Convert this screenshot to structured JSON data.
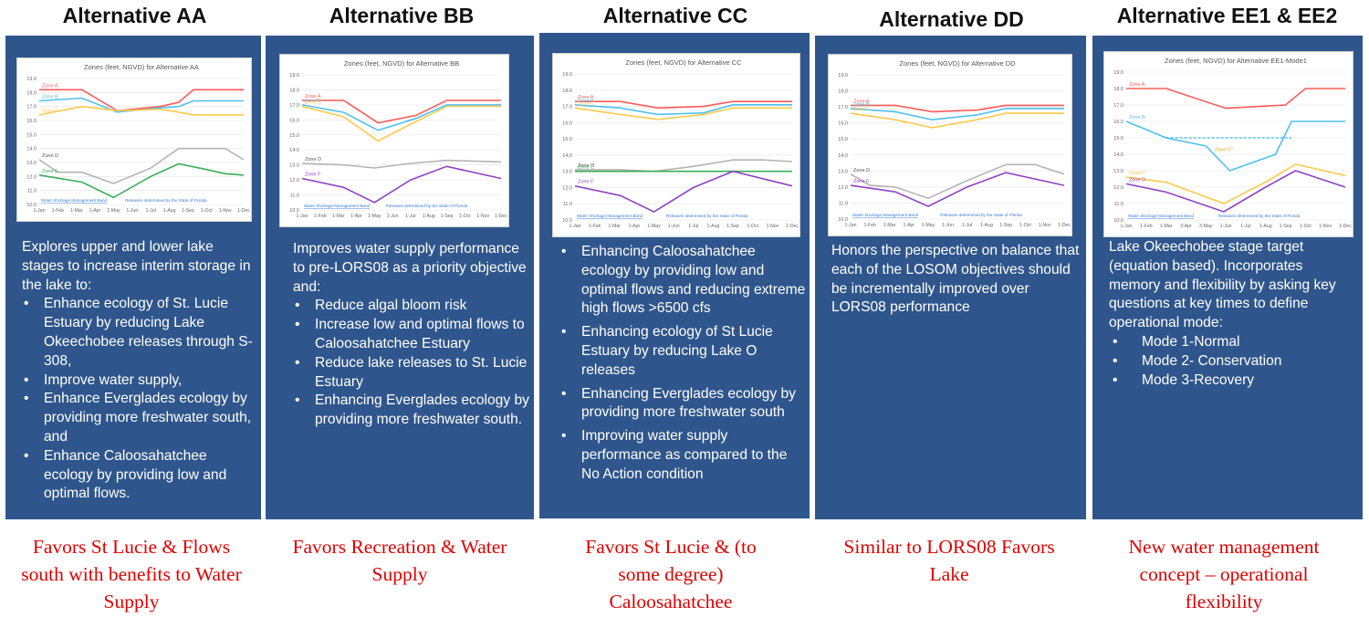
{
  "chart_data": [
    {
      "type": "line",
      "title": "Zones (feet, NGVD) for Alternative AA",
      "categories": [
        "1-Jan",
        "1-Feb",
        "1-Mar",
        "1-Apr",
        "1-May",
        "1-Jun",
        "1-Jul",
        "1-Aug",
        "1-Sep",
        "1-Oct",
        "1-Nov",
        "1-Dec"
      ],
      "ylim": [
        10.0,
        19.0
      ],
      "yticks": [
        "10.0",
        "11.0",
        "12.0",
        "13.0",
        "14.0",
        "15.0",
        "16.0",
        "17.0",
        "18.0",
        "19.0"
      ],
      "series": [
        {
          "name": "Zone A",
          "color": "#ff5a5a",
          "points": [
            [
              0,
              18.2
            ],
            [
              2.3,
              18.2
            ],
            [
              4.2,
              16.7
            ],
            [
              6.5,
              17.0
            ],
            [
              7.5,
              17.3
            ],
            [
              8.3,
              18.2
            ],
            [
              11,
              18.2
            ]
          ]
        },
        {
          "name": "Zone B",
          "color": "#4fc0f0",
          "points": [
            [
              0,
              17.4
            ],
            [
              2.3,
              17.6
            ],
            [
              4.2,
              16.6
            ],
            [
              6.5,
              16.9
            ],
            [
              7.5,
              17.0
            ],
            [
              8.3,
              17.4
            ],
            [
              11,
              17.4
            ]
          ]
        },
        {
          "name": "Zone C",
          "color": "#ffc94a",
          "points": [
            [
              0,
              16.4
            ],
            [
              2.3,
              17.0
            ],
            [
              4.2,
              16.7
            ],
            [
              6.5,
              16.8
            ],
            [
              7.5,
              16.6
            ],
            [
              8.3,
              16.4
            ],
            [
              11,
              16.4
            ]
          ]
        },
        {
          "name": "Zone D",
          "color": "#b4b4b4",
          "points": [
            [
              0,
              13.2
            ],
            [
              1,
              12.3
            ],
            [
              2.3,
              12.3
            ],
            [
              4,
              11.5
            ],
            [
              6,
              12.6
            ],
            [
              7.5,
              14.0
            ],
            [
              9,
              14.0
            ],
            [
              10,
              14.0
            ],
            [
              11,
              13.2
            ]
          ]
        },
        {
          "name": "Zone E",
          "color": "#3aae5a",
          "points": [
            [
              0,
              12.1
            ],
            [
              2.3,
              11.6
            ],
            [
              4,
              10.5
            ],
            [
              6,
              12.0
            ],
            [
              7.5,
              12.9
            ],
            [
              9,
              12.5
            ],
            [
              10,
              12.2
            ],
            [
              11,
              12.1
            ]
          ]
        }
      ],
      "footnote_left": "Water Shortage Management Band",
      "footnote_right": "Releases determined by the State of Florida"
    },
    {
      "type": "line",
      "title": "Zones (feet, NGVD) for Alternative BB",
      "categories": [
        "1-Jan",
        "1-Feb",
        "1-Mar",
        "1-Apr",
        "1-May",
        "1-Jun",
        "1-Jul",
        "1-Aug",
        "1-Sep",
        "1-Oct",
        "1-Nov",
        "1-Dec"
      ],
      "ylim": [
        10.0,
        19.0
      ],
      "yticks": [
        "10.0",
        "11.0",
        "12.0",
        "13.0",
        "14.0",
        "15.0",
        "16.0",
        "17.0",
        "18.0",
        "19.0"
      ],
      "series": [
        {
          "name": "Zone A",
          "color": "#ff5a5a",
          "points": [
            [
              0,
              17.3
            ],
            [
              2.3,
              17.3
            ],
            [
              4.2,
              15.8
            ],
            [
              6.3,
              16.3
            ],
            [
              8,
              17.3
            ],
            [
              11,
              17.3
            ]
          ]
        },
        {
          "name": "Zone B",
          "color": "#4fc0f0",
          "points": [
            [
              0,
              17.0
            ],
            [
              2.3,
              16.5
            ],
            [
              4.2,
              15.3
            ],
            [
              6.3,
              16.1
            ],
            [
              8,
              17.0
            ],
            [
              11,
              17.0
            ]
          ]
        },
        {
          "name": "Zone C",
          "color": "#ffc94a",
          "points": [
            [
              0,
              16.9
            ],
            [
              2.3,
              16.2
            ],
            [
              4.2,
              14.6
            ],
            [
              6.3,
              15.9
            ],
            [
              8,
              16.9
            ],
            [
              11,
              16.9
            ]
          ]
        },
        {
          "name": "Zone D",
          "color": "#b4b4b4",
          "points": [
            [
              0,
              13.1
            ],
            [
              2.3,
              13.0
            ],
            [
              4,
              12.8
            ],
            [
              6,
              13.1
            ],
            [
              8,
              13.3
            ],
            [
              11,
              13.2
            ]
          ]
        },
        {
          "name": "Zone F",
          "color": "#8e44c4",
          "points": [
            [
              0,
              12.1
            ],
            [
              2.3,
              11.5
            ],
            [
              4,
              10.5
            ],
            [
              6,
              12.0
            ],
            [
              8,
              12.9
            ],
            [
              11,
              12.1
            ]
          ]
        }
      ],
      "footnote_left": "Water Shortage Management Band",
      "footnote_right": "Releases determined by the State of Florida"
    },
    {
      "type": "line",
      "title": "Zones (feet, NGVD) for Alternative CC",
      "categories": [
        "1-Jan",
        "1-Feb",
        "1-Mar",
        "1-Apr",
        "1-May",
        "1-Jun",
        "1-Jul",
        "1-Aug",
        "1-Sep",
        "1-Oct",
        "1-Nov",
        "1-Dec"
      ],
      "ylim": [
        10.0,
        19.0
      ],
      "yticks": [
        "10.0",
        "11.0",
        "12.0",
        "13.0",
        "14.0",
        "15.0",
        "16.0",
        "17.0",
        "18.0",
        "19.0"
      ],
      "series": [
        {
          "name": "Zone A",
          "color": "#ff5a5a",
          "points": [
            [
              0,
              17.3
            ],
            [
              2.3,
              17.3
            ],
            [
              4.2,
              16.9
            ],
            [
              6.5,
              17.0
            ],
            [
              8,
              17.3
            ],
            [
              11,
              17.3
            ]
          ]
        },
        {
          "name": "Zone B",
          "color": "#4fc0f0",
          "points": [
            [
              0,
              17.1
            ],
            [
              2.3,
              16.9
            ],
            [
              4.2,
              16.5
            ],
            [
              6.5,
              16.6
            ],
            [
              8,
              17.1
            ],
            [
              11,
              17.1
            ]
          ]
        },
        {
          "name": "Zone C",
          "color": "#ffc94a",
          "points": [
            [
              0,
              16.9
            ],
            [
              2.3,
              16.5
            ],
            [
              4.2,
              16.2
            ],
            [
              6.5,
              16.5
            ],
            [
              8,
              16.9
            ],
            [
              11,
              16.9
            ]
          ]
        },
        {
          "name": "Zone D",
          "color": "#b4b4b4",
          "points": [
            [
              0,
              13.1
            ],
            [
              2.3,
              13.1
            ],
            [
              4,
              13.0
            ],
            [
              6,
              13.3
            ],
            [
              8,
              13.7
            ],
            [
              9.5,
              13.7
            ],
            [
              11,
              13.6
            ]
          ]
        },
        {
          "name": "Zone E",
          "color": "#3aae5a",
          "points": [
            [
              0,
              13.0
            ],
            [
              11,
              13.0
            ]
          ]
        },
        {
          "name": "Zone F",
          "color": "#8e44c4",
          "points": [
            [
              0,
              12.1
            ],
            [
              2.3,
              11.5
            ],
            [
              4,
              10.5
            ],
            [
              6,
              12.0
            ],
            [
              8,
              13.0
            ],
            [
              11,
              12.1
            ]
          ]
        }
      ],
      "footnote_left": "Water Shortage Management Band",
      "footnote_right": "Releases determined by the State of Florida"
    },
    {
      "type": "line",
      "title": "Zones (feet, NGVD) for Alternative DD",
      "categories": [
        "1-Jan",
        "1-Feb",
        "1-Mar",
        "1-Apr",
        "1-May",
        "1-Jun",
        "1-Jul",
        "1-Aug",
        "1-Sep",
        "1-Oct",
        "1-Nov",
        "1-Dec"
      ],
      "ylim": [
        10.0,
        19.0
      ],
      "yticks": [
        "10.0",
        "11.0",
        "12.0",
        "13.0",
        "14.0",
        "15.0",
        "16.0",
        "17.0",
        "18.0",
        "19.0"
      ],
      "series": [
        {
          "name": "Zone A",
          "color": "#ff5a5a",
          "points": [
            [
              0,
              17.1
            ],
            [
              2.3,
              17.1
            ],
            [
              4.2,
              16.7
            ],
            [
              6.5,
              16.8
            ],
            [
              8,
              17.1
            ],
            [
              11,
              17.1
            ]
          ]
        },
        {
          "name": "Zone B",
          "color": "#4fc0f0",
          "points": [
            [
              0,
              16.9
            ],
            [
              2.3,
              16.7
            ],
            [
              4.2,
              16.2
            ],
            [
              6.5,
              16.5
            ],
            [
              8,
              16.9
            ],
            [
              11,
              16.9
            ]
          ]
        },
        {
          "name": "Zone C",
          "color": "#ffc94a",
          "points": [
            [
              0,
              16.6
            ],
            [
              2.3,
              16.2
            ],
            [
              4.2,
              15.7
            ],
            [
              6.5,
              16.2
            ],
            [
              8,
              16.6
            ],
            [
              11,
              16.6
            ]
          ]
        },
        {
          "name": "Zone D",
          "color": "#b4b4b4",
          "points": [
            [
              0,
              12.8
            ],
            [
              1,
              12.1
            ],
            [
              2.3,
              12.0
            ],
            [
              4,
              11.3
            ],
            [
              6,
              12.4
            ],
            [
              8,
              13.4
            ],
            [
              9.5,
              13.4
            ],
            [
              11,
              12.8
            ]
          ]
        },
        {
          "name": "Zone F",
          "color": "#8e44c4",
          "points": [
            [
              0,
              12.1
            ],
            [
              2.3,
              11.7
            ],
            [
              4,
              10.8
            ],
            [
              6,
              12.0
            ],
            [
              8,
              12.9
            ],
            [
              11,
              12.1
            ]
          ]
        }
      ],
      "footnote_left": "Water Shortage Management Band",
      "footnote_right": "Releases determined by the State of Florida"
    },
    {
      "type": "line",
      "title": "Zones (feet, NGVD) for Alternative EE1-Mode1",
      "categories": [
        "1-Jan",
        "1-Feb",
        "1-Mar",
        "3-Apr",
        "3-May",
        "1-Jun",
        "1-Jul",
        "1-Aug",
        "1-Sep",
        "1-Oct",
        "1-Nov",
        "1-Dec"
      ],
      "ylim": [
        10.0,
        19.0
      ],
      "yticks": [
        "10.0",
        "11.0",
        "12.0",
        "13.0",
        "14.0",
        "15.0",
        "16.0",
        "17.0",
        "18.0",
        "19.0"
      ],
      "series": [
        {
          "name": "Zone A",
          "color": "#ff5a5a",
          "points": [
            [
              0,
              18.0
            ],
            [
              2,
              18.0
            ],
            [
              5,
              16.8
            ],
            [
              8,
              17.0
            ],
            [
              9,
              18.0
            ],
            [
              11,
              18.0
            ]
          ]
        },
        {
          "name": "Zone B",
          "color": "#4fc0f0",
          "points": [
            [
              0,
              16.0
            ],
            [
              2,
              15.0
            ],
            [
              4,
              14.5
            ],
            [
              5.2,
              13.0
            ],
            [
              7.5,
              14.0
            ],
            [
              8.3,
              16.0
            ],
            [
              11,
              16.0
            ]
          ]
        },
        {
          "name": "Zone C",
          "color": "#ffc94a",
          "points": [
            [
              0,
              12.6
            ],
            [
              2,
              12.3
            ],
            [
              4.9,
              11.0
            ],
            [
              7,
              12.3
            ],
            [
              8.5,
              13.4
            ],
            [
              11,
              12.7
            ]
          ]
        },
        {
          "name": "Zone D",
          "color": "#8e44c4",
          "points": [
            [
              0,
              12.2
            ],
            [
              2,
              11.7
            ],
            [
              4.9,
              10.5
            ],
            [
              7,
              12.0
            ],
            [
              8.5,
              13.0
            ],
            [
              11,
              12.0
            ]
          ]
        }
      ],
      "dashed_line": {
        "color": "#4fc0f0",
        "y": 15.0,
        "x": [
          2,
          8.3
        ]
      },
      "labels": [
        {
          "text": "Zone C*",
          "x": 4.9,
          "y": 14.2
        }
      ],
      "footnote_left": "Water Shortage Management Band",
      "footnote_right": "Releases determined by the State of Florida"
    }
  ],
  "columns": [
    {
      "title": "Alternative AA",
      "intro": "Explores upper and lower lake stages to increase interim storage in the lake to:",
      "bullets": [
        "Enhance ecology of St. Lucie Estuary by reducing Lake Okeechobee releases through S-308,",
        "Improve water supply,",
        "Enhance Everglades ecology by providing more freshwater south, and",
        "Enhance Caloosahatchee ecology by providing low and optimal flows."
      ],
      "summary": "Favors St Lucie & Flows south with benefits to Water Supply"
    },
    {
      "title": "Alternative BB",
      "intro": "Improves water supply performance to pre-LORS08 as a priority objective and:",
      "bullets": [
        "Reduce algal bloom risk",
        "Increase low and optimal flows to Caloosahatchee Estuary",
        "Reduce lake releases to St. Lucie Estuary",
        "Enhancing Everglades ecology by providing more freshwater south."
      ],
      "summary": "Favors Recreation & Water Supply"
    },
    {
      "title": "Alternative CC",
      "intro": "",
      "bullets": [
        "Enhancing Caloosahatchee ecology by providing low and optimal flows and reducing extreme high flows >6500 cfs",
        "Enhancing ecology of St Lucie Estuary by reducing Lake O releases",
        "Enhancing Everglades ecology by providing more freshwater south",
        "Improving water supply performance as compared to the No Action condition"
      ],
      "summary": "Favors St Lucie & (to some degree) Caloosahatchee"
    },
    {
      "title": "Alternative DD",
      "intro": "Honors the perspective on balance that each of the LOSOM objectives should be incrementally improved over LORS08 performance",
      "bullets": [],
      "summary": "Similar to LORS08 Favors Lake"
    },
    {
      "title": "Alternative EE1 & EE2",
      "intro": "Lake Okeechobee stage target (equation based).  Incorporates memory and flexibility by asking key questions at key times to define operational mode:",
      "bullets": [
        "Mode 1-Normal",
        "Mode 2- Conservation",
        "Mode 3-Recovery"
      ],
      "summary": "New water management concept – operational flexibility"
    }
  ]
}
